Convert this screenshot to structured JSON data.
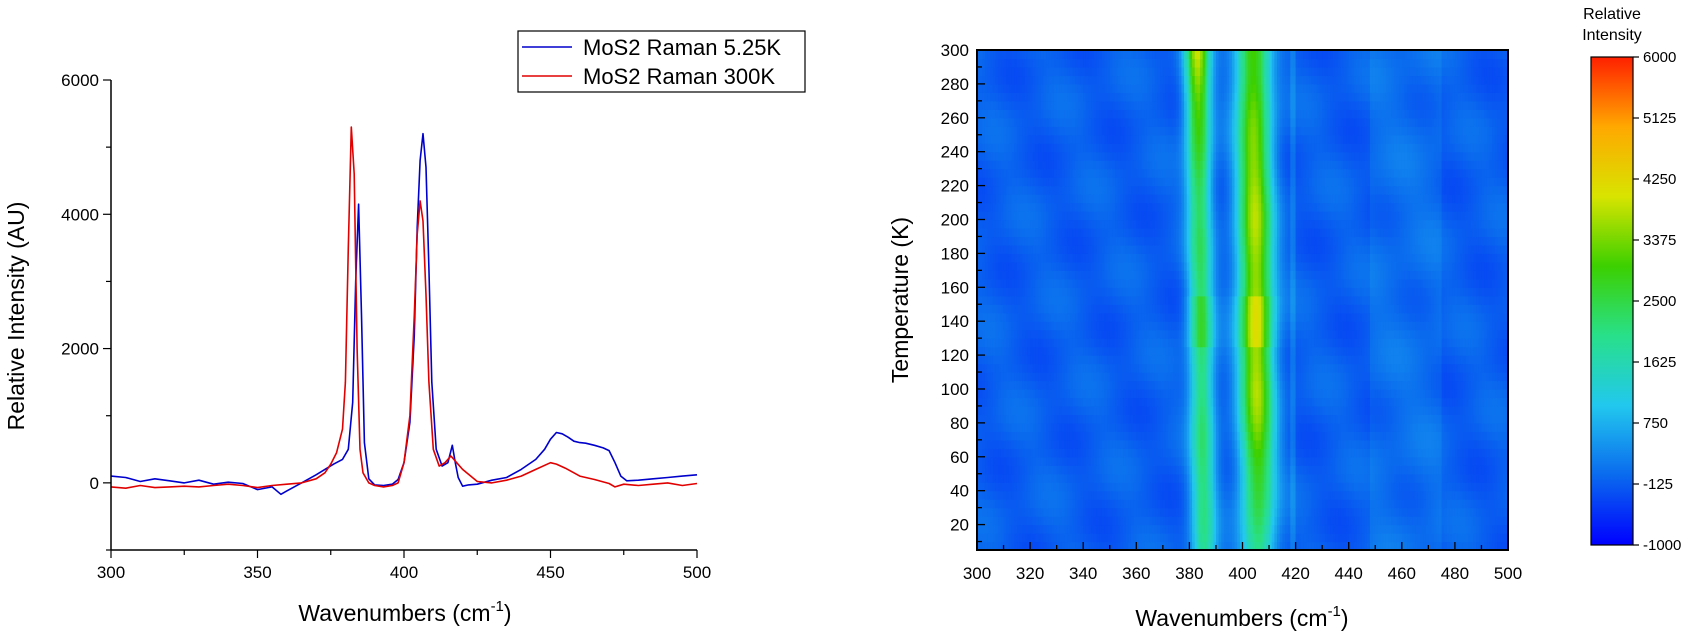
{
  "chart_data": [
    {
      "type": "line",
      "xlabel": "Wavenumbers (cm",
      "xlabel_sup": "-1",
      "xlabel_close": ")",
      "ylabel": "Relative Intensity (AU)",
      "xlim": [
        300,
        500
      ],
      "ylim": [
        -1000,
        6000
      ],
      "xticks": [
        300,
        350,
        400,
        450,
        500
      ],
      "yticks": [
        0,
        2000,
        4000,
        6000
      ],
      "legend": "top-right",
      "series": [
        {
          "name": "MoS2 Raman 5.25K",
          "color": "#0000cc",
          "x": [
            300,
            305,
            310,
            315,
            320,
            325,
            330,
            335,
            340,
            345,
            350,
            355,
            358,
            360,
            365,
            370,
            373,
            376,
            379,
            381,
            382.5,
            383.5,
            384.5,
            385.5,
            386.5,
            388,
            390,
            393,
            396,
            398,
            400,
            402,
            403.5,
            404.5,
            405.5,
            406.5,
            407.5,
            408.5,
            409.5,
            411,
            413,
            415,
            416.5,
            417.5,
            418.5,
            420,
            422,
            425,
            430,
            435,
            440,
            445,
            448,
            450,
            452,
            454,
            456,
            458,
            460,
            462,
            465,
            468,
            470,
            472,
            474,
            476,
            480,
            485,
            490,
            495,
            500
          ],
          "y": [
            100,
            80,
            20,
            60,
            30,
            0,
            40,
            -20,
            10,
            -10,
            -100,
            -60,
            -170,
            -120,
            0,
            120,
            200,
            280,
            350,
            500,
            1200,
            3000,
            4150,
            2500,
            600,
            60,
            -30,
            -40,
            -20,
            50,
            300,
            900,
            2200,
            3800,
            4800,
            5200,
            4700,
            3200,
            1500,
            500,
            250,
            300,
            560,
            300,
            80,
            -50,
            -30,
            -20,
            40,
            80,
            200,
            350,
            500,
            650,
            750,
            730,
            680,
            620,
            600,
            590,
            560,
            520,
            480,
            300,
            100,
            30,
            40,
            60,
            80,
            100,
            120
          ]
        },
        {
          "name": "MoS2 Raman 300K",
          "color": "#e00000",
          "x": [
            300,
            305,
            310,
            315,
            320,
            325,
            330,
            335,
            340,
            345,
            350,
            355,
            360,
            365,
            370,
            373,
            375,
            377,
            379,
            380,
            381,
            382,
            383,
            384,
            385,
            386,
            388,
            390,
            393,
            396,
            398,
            400,
            402,
            403.5,
            404.5,
            405.5,
            406.5,
            407.5,
            408.5,
            410,
            412,
            414,
            416,
            418,
            420,
            425,
            430,
            435,
            440,
            445,
            450,
            452,
            455,
            458,
            460,
            465,
            470,
            472,
            475,
            480,
            485,
            490,
            495,
            500
          ],
          "y": [
            -60,
            -80,
            -40,
            -70,
            -60,
            -50,
            -60,
            -40,
            -20,
            -40,
            -70,
            -40,
            -20,
            0,
            60,
            150,
            280,
            450,
            800,
            1500,
            3500,
            5300,
            4600,
            2000,
            500,
            150,
            0,
            -40,
            -60,
            -40,
            0,
            300,
            1000,
            2500,
            3700,
            4200,
            3900,
            2800,
            1500,
            500,
            250,
            300,
            400,
            300,
            200,
            20,
            0,
            40,
            100,
            200,
            300,
            280,
            220,
            150,
            100,
            50,
            -10,
            -60,
            -20,
            -40,
            -20,
            0,
            -40,
            -10
          ]
        }
      ]
    },
    {
      "type": "heatmap",
      "xlabel": "Wavenumbers (cm",
      "xlabel_sup": "-1",
      "xlabel_close": ")",
      "ylabel": "Temperature (K)",
      "xlim": [
        300,
        500
      ],
      "ylim": [
        5,
        300
      ],
      "xticks": [
        300,
        320,
        340,
        360,
        380,
        400,
        420,
        440,
        460,
        480,
        500
      ],
      "yticks": [
        20,
        40,
        60,
        80,
        100,
        120,
        140,
        160,
        180,
        200,
        220,
        240,
        260,
        280,
        300
      ],
      "colorbar": {
        "title_line1": "Relative",
        "title_line2": "Intensity",
        "range": [
          -1000,
          6000
        ],
        "ticks": [
          6000,
          5125,
          4250,
          3375,
          2500,
          1625,
          750,
          -125,
          -1000
        ],
        "colors": [
          "#0000ff",
          "#0a6aee",
          "#22c8ee",
          "#28e08a",
          "#3cd000",
          "#d8e400",
          "#ffa800",
          "#ff2000"
        ]
      },
      "peaks": [
        {
          "center_300K": 383,
          "center_5K": 385.5,
          "width": 3.2,
          "intensity_300K": 3900,
          "intensity_mid": 2300,
          "intensity_low": 2000
        },
        {
          "center_300K": 404,
          "center_5K": 406,
          "width": 4.5,
          "intensity_300K": 3200,
          "intensity_mid": 3800,
          "intensity_low": 2200
        }
      ],
      "background_intensity": -100
    }
  ]
}
